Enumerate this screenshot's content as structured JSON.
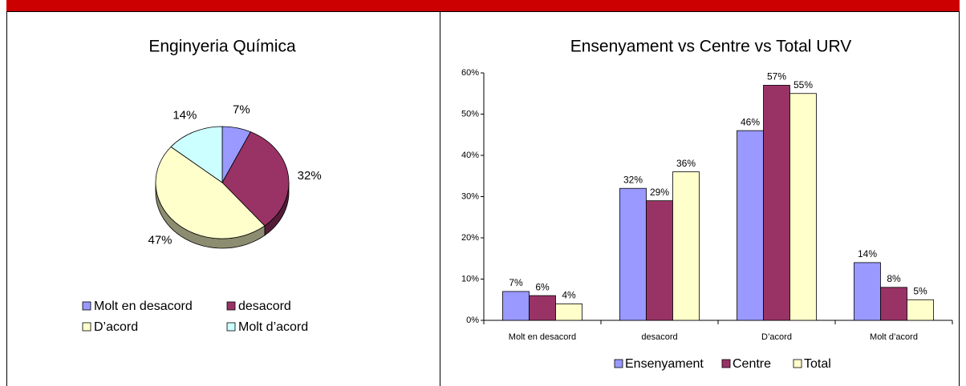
{
  "chart_data": [
    {
      "type": "pie",
      "title": "Enginyeria Química",
      "categories": [
        "Molt en desacord",
        "desacord",
        "D’acord",
        "Molt d’acord"
      ],
      "values": [
        7,
        32,
        47,
        14
      ],
      "value_labels": [
        "7%",
        "32%",
        "47%",
        "14%"
      ],
      "colors": [
        "#9999ff",
        "#993366",
        "#ffffcc",
        "#ccffff"
      ]
    },
    {
      "type": "bar",
      "title": "Ensenyament vs Centre vs Total URV",
      "categories": [
        "Molt en desacord",
        "desacord",
        "D’acord",
        "Molt d’acord"
      ],
      "series": [
        {
          "name": "Ensenyament",
          "color": "#9999ff",
          "values": [
            7,
            32,
            46,
            14
          ],
          "value_labels": [
            "7%",
            "32%",
            "46%",
            "14%"
          ]
        },
        {
          "name": "Centre",
          "color": "#993366",
          "values": [
            6,
            29,
            57,
            8
          ],
          "value_labels": [
            "6%",
            "29%",
            "57%",
            "8%"
          ]
        },
        {
          "name": "Total",
          "color": "#ffffcc",
          "values": [
            4,
            36,
            55,
            5
          ],
          "value_labels": [
            "4%",
            "36%",
            "55%",
            "5%"
          ]
        }
      ],
      "ylim": [
        0,
        60
      ],
      "yticks": [
        {
          "value": 0,
          "label": "0%"
        },
        {
          "value": 10,
          "label": "10%"
        },
        {
          "value": 20,
          "label": "20%"
        },
        {
          "value": 30,
          "label": "30%"
        },
        {
          "value": 40,
          "label": "40%"
        },
        {
          "value": 50,
          "label": "50%"
        },
        {
          "value": 60,
          "label": "60%"
        }
      ]
    }
  ]
}
